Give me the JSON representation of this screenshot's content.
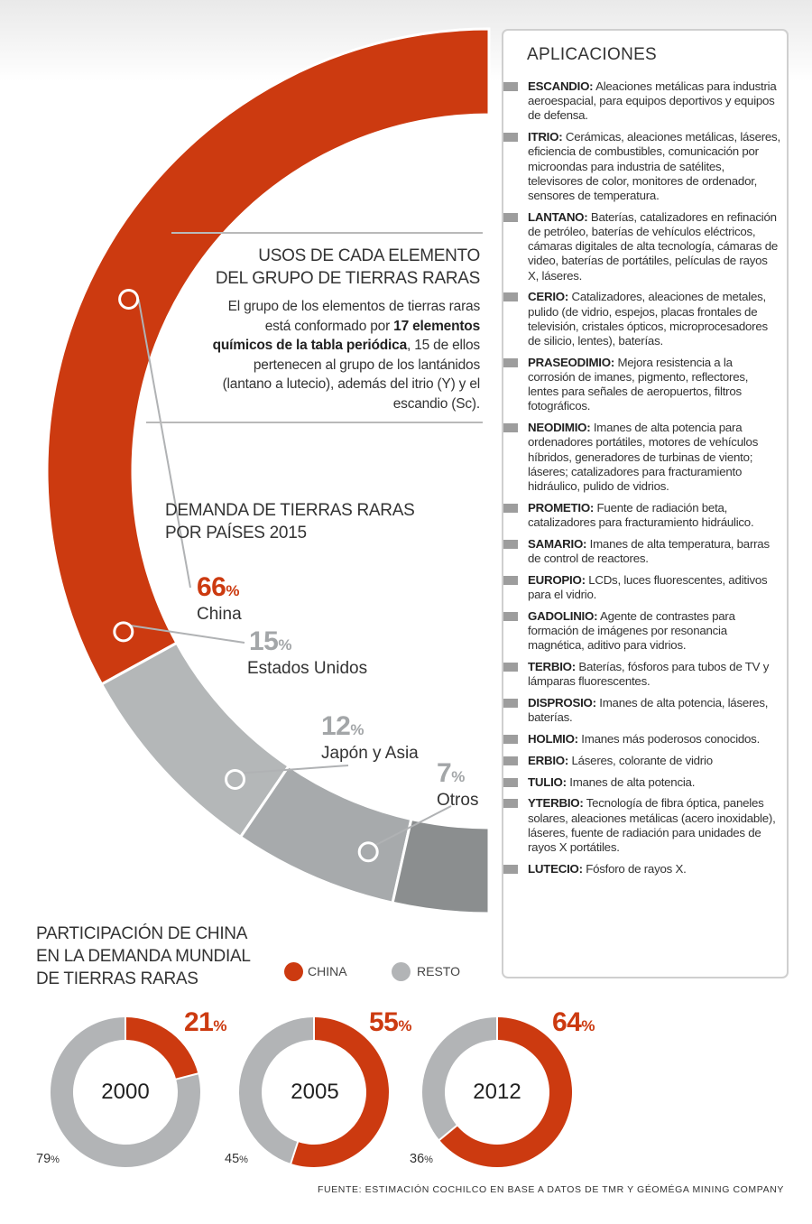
{
  "colors": {
    "china": "#cc3a10",
    "usa": "#b4b7b8",
    "japan": "#a7aaac",
    "others": "#8b8e8f",
    "resto": "#b2b4b6"
  },
  "usos": {
    "title_line1": "USOS DE CADA ELEMENTO",
    "title_line2": "DEL GRUPO DE TIERRAS RARAS",
    "text_a": "El grupo de los elementos de tierras raras está conformado por ",
    "text_bold": "17 elementos químicos de la tabla periódica",
    "text_b": ", 15 de ellos pertenecen al grupo de los lantánidos (lantano a lutecio), además del itrio (Y) y el escandio (Sc)."
  },
  "demanda": {
    "title_line1": "DEMANDA DE TIERRAS RARAS",
    "title_line2": "POR PAÍSES 2015"
  },
  "chart_data": [
    {
      "type": "pie",
      "title": "DEMANDA DE TIERRAS RARAS POR PAÍSES 2015",
      "categories": [
        "China",
        "Estados Unidos",
        "Japón y Asia",
        "Otros"
      ],
      "values": [
        66,
        15,
        12,
        7
      ],
      "unit": "%"
    },
    {
      "type": "pie",
      "title": "PARTICIPACIÓN DE CHINA EN LA DEMANDA MUNDIAL DE TIERRAS RARAS",
      "categories": [
        "2000",
        "2005",
        "2012"
      ],
      "series": [
        {
          "name": "CHINA",
          "values": [
            21,
            55,
            64
          ]
        },
        {
          "name": "RESTO",
          "values": [
            79,
            45,
            36
          ]
        }
      ],
      "unit": "%"
    }
  ],
  "unit_symbol": "%",
  "aplicaciones": {
    "title": "APLICACIONES",
    "items": [
      {
        "name": "ESCANDIO:",
        "text": "Aleaciones metálicas para industria aeroespacial, para equipos deportivos y equipos de defensa."
      },
      {
        "name": "ITRIO:",
        "text": "Cerámicas, aleaciones metálicas, láseres, eficiencia de combustibles, comunicación por microondas para industria de satélites, televisores de color, monitores de ordenador, sensores de temperatura."
      },
      {
        "name": "LANTANO:",
        "text": "Baterías, catalizadores en refinación de petróleo, baterías de vehículos eléctricos, cámaras digitales de alta tecnología, cámaras de video, baterías de portátiles, películas de rayos X, láseres."
      },
      {
        "name": "CERIO:",
        "text": "Catalizadores, aleaciones de metales, pulido (de vidrio, espejos, placas frontales de televisión, cristales ópticos, microprocesadores de silicio, lentes), baterías."
      },
      {
        "name": "PRASEODIMIO:",
        "text": "Mejora resistencia a la corrosión de imanes, pigmento, reflectores, lentes para señales de aeropuertos, filtros fotográficos."
      },
      {
        "name": "NEODIMIO:",
        "text": "Imanes de alta potencia para ordenadores portátiles, motores de vehículos híbridos, generadores de turbinas de viento; láseres; catalizadores para fracturamiento hidráulico, pulido de vidrios."
      },
      {
        "name": "PROMETIO:",
        "text": "Fuente de radiación beta, catalizadores para fracturamiento hidráulico."
      },
      {
        "name": "SAMARIO:",
        "text": "Imanes de alta temperatura, barras de control de reactores."
      },
      {
        "name": "EUROPIO:",
        "text": "LCDs, luces fluorescentes, aditivos para el vidrio."
      },
      {
        "name": "GADOLINIO:",
        "text": "Agente de contrastes para formación de imágenes por resonancia magnética, aditivo para vidrios."
      },
      {
        "name": "TERBIO:",
        "text": "Baterías, fósforos para tubos de TV y lámparas fluorescentes."
      },
      {
        "name": "DISPROSIO:",
        "text": "Imanes de alta potencia, láseres, baterías."
      },
      {
        "name": "HOLMIO:",
        "text": "Imanes más poderosos conocidos."
      },
      {
        "name": "ERBIO:",
        "text": "Láseres, colorante de vidrio"
      },
      {
        "name": "TULIO:",
        "text": "Imanes de alta potencia."
      },
      {
        "name": "YTERBIO:",
        "text": "Tecnología de fibra óptica, paneles solares, aleaciones metálicas (acero inoxidable), láseres, fuente de radiación para unidades de rayos X portátiles."
      },
      {
        "name": "LUTECIO:",
        "text": "Fósforo de rayos X."
      }
    ]
  },
  "participacion": {
    "title_line1": "PARTICIPACIÓN DE CHINA",
    "title_line2": "EN LA DEMANDA MUNDIAL",
    "title_line3": "DE TIERRAS RARAS",
    "legend_china": "CHINA",
    "legend_resto": "RESTO"
  },
  "source": "FUENTE: ESTIMACIÓN COCHILCO EN BASE A DATOS DE TMR Y GÉOMÉGA MINING COMPANY"
}
